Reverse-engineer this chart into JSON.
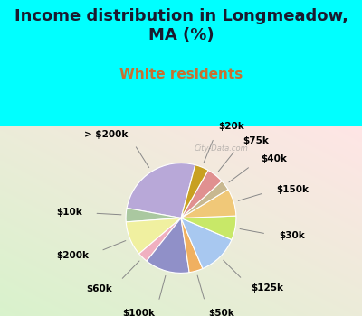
{
  "title": "Income distribution in Longmeadow,\nMA (%)",
  "subtitle": "White residents",
  "background_color": "#00FFFF",
  "title_color": "#1a1a2e",
  "subtitle_color": "#c87030",
  "labels": [
    "> $200k",
    "$10k",
    "$200k",
    "$60k",
    "$100k",
    "$50k",
    "$125k",
    "$30k",
    "$150k",
    "$40k",
    "$75k",
    "$20k"
  ],
  "values": [
    26,
    4,
    10,
    3,
    13,
    4,
    12,
    7,
    8,
    3,
    5,
    4
  ],
  "colors": [
    "#b8a8d8",
    "#aac8a0",
    "#f0f0a0",
    "#f0b0c0",
    "#9090c8",
    "#f0b060",
    "#a8c8f0",
    "#c8e868",
    "#f0c878",
    "#c8b890",
    "#e09090",
    "#c8a020"
  ],
  "startangle": 75,
  "label_fontsize": 7.5,
  "title_fontsize": 13,
  "subtitle_fontsize": 11,
  "watermark": "City-Data.com"
}
